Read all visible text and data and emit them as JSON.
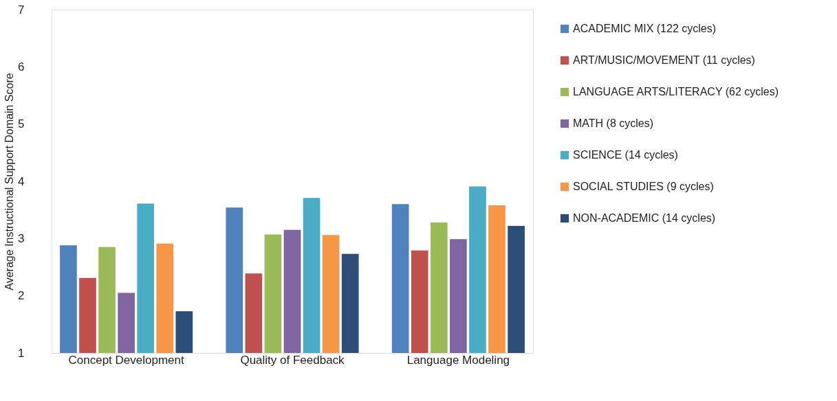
{
  "chart_data": {
    "type": "bar",
    "ylabel": "Average Instructional Support Domain Score",
    "categories": [
      "Concept Development",
      "Quality of Feedback",
      "Language Modeling"
    ],
    "ylim": [
      1,
      7
    ],
    "yticks": [
      1,
      2,
      3,
      4,
      5,
      6,
      7
    ],
    "grid": false,
    "legend": "right",
    "series": [
      {
        "name": "ACADEMIC MIX (122 cycles)",
        "color": "#4f81bd",
        "values": [
          2.88,
          3.54,
          3.6
        ]
      },
      {
        "name": "ART/MUSIC/MOVEMENT (11 cycles)",
        "color": "#c0504d",
        "values": [
          2.31,
          2.39,
          2.79
        ]
      },
      {
        "name": "LANGUAGE ARTS/LITERACY (62 cycles)",
        "color": "#9bbb59",
        "values": [
          2.85,
          3.07,
          3.28
        ]
      },
      {
        "name": "MATH (8 cycles)",
        "color": "#8064a2",
        "values": [
          2.05,
          3.15,
          2.99
        ]
      },
      {
        "name": "SCIENCE (14 cycles)",
        "color": "#4bacc6",
        "values": [
          3.61,
          3.71,
          3.91
        ]
      },
      {
        "name": "SOCIAL STUDIES (9 cycles)",
        "color": "#f79646",
        "values": [
          2.91,
          3.06,
          3.58
        ]
      },
      {
        "name": "NON-ACADEMIC (14 cycles)",
        "color": "#2c4d75",
        "values": [
          1.73,
          2.73,
          3.22
        ]
      }
    ]
  }
}
